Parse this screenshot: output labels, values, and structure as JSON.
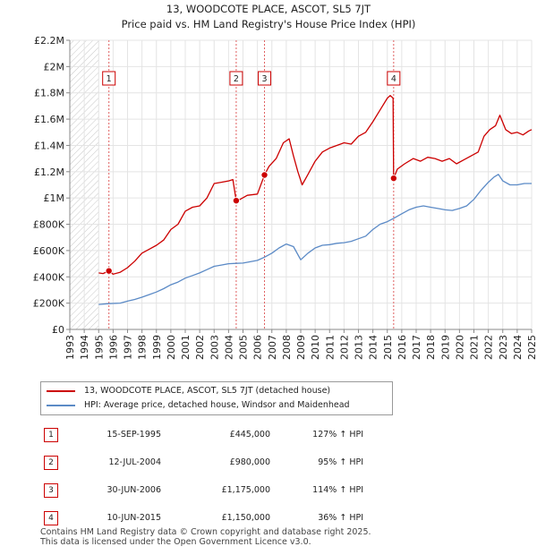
{
  "chart_data": {
    "type": "line",
    "title": "13, WOODCOTE PLACE, ASCOT, SL5 7JT",
    "subtitle": "Price paid vs. HM Land Registry's House Price Index (HPI)",
    "xlabel": "",
    "ylabel": "",
    "xlim": [
      1993,
      2025
    ],
    "ylim": [
      0,
      2200000
    ],
    "x_ticks": [
      "1993",
      "1994",
      "1995",
      "1996",
      "1997",
      "1998",
      "1999",
      "2000",
      "2001",
      "2002",
      "2003",
      "2004",
      "2005",
      "2006",
      "2007",
      "2008",
      "2009",
      "2010",
      "2011",
      "2012",
      "2013",
      "2014",
      "2015",
      "2016",
      "2017",
      "2018",
      "2019",
      "2020",
      "2021",
      "2022",
      "2023",
      "2024",
      "2025"
    ],
    "y_ticks": [
      {
        "value": 0,
        "label": "£0"
      },
      {
        "value": 200000,
        "label": "£200K"
      },
      {
        "value": 400000,
        "label": "£400K"
      },
      {
        "value": 600000,
        "label": "£600K"
      },
      {
        "value": 800000,
        "label": "£800K"
      },
      {
        "value": 1000000,
        "label": "£1M"
      },
      {
        "value": 1200000,
        "label": "£1.2M"
      },
      {
        "value": 1400000,
        "label": "£1.4M"
      },
      {
        "value": 1600000,
        "label": "£1.6M"
      },
      {
        "value": 1800000,
        "label": "£1.8M"
      },
      {
        "value": 2000000,
        "label": "£2M"
      },
      {
        "value": 2200000,
        "label": "£2.2M"
      }
    ],
    "hatch_before": 1995,
    "series": [
      {
        "name": "13, WOODCOTE PLACE, ASCOT, SL5 7JT (detached house)",
        "color": "#cc0000",
        "points": [
          [
            1995.0,
            430000
          ],
          [
            1995.3,
            425000
          ],
          [
            1995.71,
            445000
          ],
          [
            1996.0,
            420000
          ],
          [
            1996.5,
            435000
          ],
          [
            1997.0,
            470000
          ],
          [
            1997.5,
            520000
          ],
          [
            1998.0,
            580000
          ],
          [
            1998.5,
            610000
          ],
          [
            1999.0,
            640000
          ],
          [
            1999.5,
            680000
          ],
          [
            2000.0,
            760000
          ],
          [
            2000.5,
            800000
          ],
          [
            2001.0,
            900000
          ],
          [
            2001.5,
            930000
          ],
          [
            2002.0,
            940000
          ],
          [
            2002.5,
            1000000
          ],
          [
            2003.0,
            1110000
          ],
          [
            2003.5,
            1120000
          ],
          [
            2004.0,
            1130000
          ],
          [
            2004.3,
            1140000
          ],
          [
            2004.53,
            980000
          ],
          [
            2004.8,
            990000
          ],
          [
            2005.3,
            1020000
          ],
          [
            2006.0,
            1030000
          ],
          [
            2006.49,
            1175000
          ],
          [
            2006.8,
            1240000
          ],
          [
            2007.3,
            1300000
          ],
          [
            2007.8,
            1420000
          ],
          [
            2008.2,
            1450000
          ],
          [
            2008.5,
            1320000
          ],
          [
            2008.8,
            1200000
          ],
          [
            2009.1,
            1100000
          ],
          [
            2009.5,
            1180000
          ],
          [
            2010.0,
            1280000
          ],
          [
            2010.5,
            1350000
          ],
          [
            2011.0,
            1380000
          ],
          [
            2011.5,
            1400000
          ],
          [
            2012.0,
            1420000
          ],
          [
            2012.5,
            1410000
          ],
          [
            2013.0,
            1470000
          ],
          [
            2013.5,
            1500000
          ],
          [
            2014.0,
            1580000
          ],
          [
            2014.5,
            1670000
          ],
          [
            2015.0,
            1760000
          ],
          [
            2015.2,
            1780000
          ],
          [
            2015.4,
            1760000
          ],
          [
            2015.44,
            1150000
          ],
          [
            2015.7,
            1220000
          ],
          [
            2016.2,
            1260000
          ],
          [
            2016.8,
            1300000
          ],
          [
            2017.3,
            1280000
          ],
          [
            2017.8,
            1310000
          ],
          [
            2018.3,
            1300000
          ],
          [
            2018.8,
            1280000
          ],
          [
            2019.3,
            1300000
          ],
          [
            2019.8,
            1260000
          ],
          [
            2020.3,
            1290000
          ],
          [
            2020.8,
            1320000
          ],
          [
            2021.3,
            1350000
          ],
          [
            2021.7,
            1470000
          ],
          [
            2022.1,
            1520000
          ],
          [
            2022.5,
            1550000
          ],
          [
            2022.8,
            1630000
          ],
          [
            2023.2,
            1520000
          ],
          [
            2023.6,
            1490000
          ],
          [
            2024.0,
            1500000
          ],
          [
            2024.4,
            1480000
          ],
          [
            2024.8,
            1510000
          ],
          [
            2025.0,
            1520000
          ]
        ]
      },
      {
        "name": "HPI: Average price, detached house, Windsor and Maidenhead",
        "color": "#5b8ac6",
        "points": [
          [
            1995.0,
            190000
          ],
          [
            1995.7,
            196000
          ],
          [
            1996.5,
            200000
          ],
          [
            1997.0,
            215000
          ],
          [
            1997.5,
            228000
          ],
          [
            1998.0,
            245000
          ],
          [
            1998.5,
            265000
          ],
          [
            1999.0,
            285000
          ],
          [
            1999.5,
            310000
          ],
          [
            2000.0,
            340000
          ],
          [
            2000.5,
            360000
          ],
          [
            2001.0,
            390000
          ],
          [
            2001.5,
            410000
          ],
          [
            2002.0,
            430000
          ],
          [
            2002.5,
            455000
          ],
          [
            2003.0,
            480000
          ],
          [
            2003.5,
            490000
          ],
          [
            2004.0,
            500000
          ],
          [
            2004.53,
            503000
          ],
          [
            2005.0,
            505000
          ],
          [
            2005.5,
            515000
          ],
          [
            2006.0,
            525000
          ],
          [
            2006.49,
            550000
          ],
          [
            2007.0,
            580000
          ],
          [
            2007.5,
            620000
          ],
          [
            2008.0,
            650000
          ],
          [
            2008.5,
            630000
          ],
          [
            2009.0,
            530000
          ],
          [
            2009.5,
            580000
          ],
          [
            2010.0,
            620000
          ],
          [
            2010.5,
            640000
          ],
          [
            2011.0,
            645000
          ],
          [
            2011.5,
            655000
          ],
          [
            2012.0,
            660000
          ],
          [
            2012.5,
            670000
          ],
          [
            2013.0,
            690000
          ],
          [
            2013.5,
            710000
          ],
          [
            2014.0,
            760000
          ],
          [
            2014.5,
            800000
          ],
          [
            2015.0,
            820000
          ],
          [
            2015.44,
            845000
          ],
          [
            2016.0,
            880000
          ],
          [
            2016.5,
            910000
          ],
          [
            2017.0,
            930000
          ],
          [
            2017.5,
            940000
          ],
          [
            2018.0,
            930000
          ],
          [
            2018.5,
            920000
          ],
          [
            2019.0,
            910000
          ],
          [
            2019.5,
            905000
          ],
          [
            2020.0,
            920000
          ],
          [
            2020.5,
            940000
          ],
          [
            2021.0,
            990000
          ],
          [
            2021.5,
            1060000
          ],
          [
            2022.0,
            1120000
          ],
          [
            2022.4,
            1160000
          ],
          [
            2022.7,
            1180000
          ],
          [
            2023.0,
            1130000
          ],
          [
            2023.5,
            1100000
          ],
          [
            2024.0,
            1100000
          ],
          [
            2024.5,
            1110000
          ],
          [
            2025.0,
            1110000
          ]
        ]
      }
    ],
    "sales": [
      {
        "n": "1",
        "x": 1995.71,
        "y": 445000
      },
      {
        "n": "2",
        "x": 2004.53,
        "y": 980000
      },
      {
        "n": "3",
        "x": 2006.49,
        "y": 1175000
      },
      {
        "n": "4",
        "x": 2015.44,
        "y": 1150000
      }
    ]
  },
  "legend": {
    "red": "13, WOODCOTE PLACE, ASCOT, SL5 7JT (detached house)",
    "blue": "HPI: Average price, detached house, Windsor and Maidenhead"
  },
  "transactions": [
    {
      "n": "1",
      "date": "15-SEP-1995",
      "price": "£445,000",
      "hpi": "127% ↑ HPI"
    },
    {
      "n": "2",
      "date": "12-JUL-2004",
      "price": "£980,000",
      "hpi": "95% ↑ HPI"
    },
    {
      "n": "3",
      "date": "30-JUN-2006",
      "price": "£1,175,000",
      "hpi": "114% ↑ HPI"
    },
    {
      "n": "4",
      "date": "10-JUN-2015",
      "price": "£1,150,000",
      "hpi": "36% ↑ HPI"
    }
  ],
  "footer": {
    "line1": "Contains HM Land Registry data © Crown copyright and database right 2025.",
    "line2": "This data is licensed under the Open Government Licence v3.0."
  }
}
